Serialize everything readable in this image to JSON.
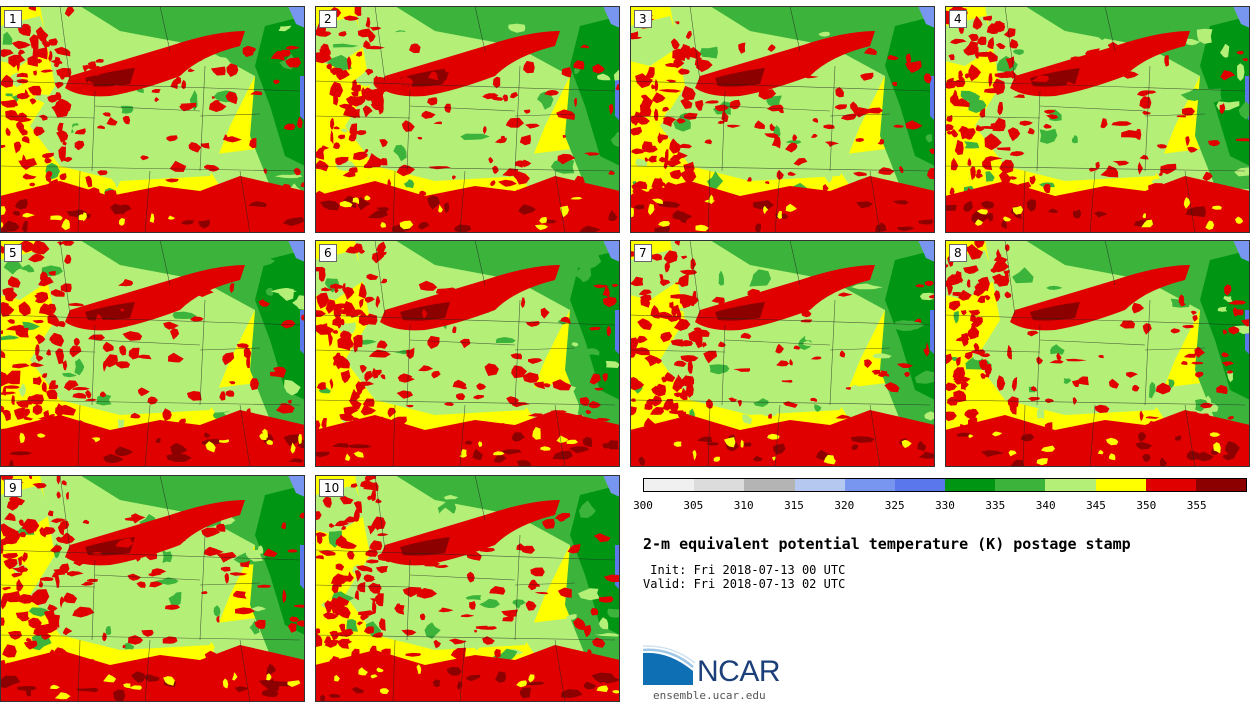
{
  "panels": [
    {
      "label": "1"
    },
    {
      "label": "2"
    },
    {
      "label": "3"
    },
    {
      "label": "4"
    },
    {
      "label": "5"
    },
    {
      "label": "6"
    },
    {
      "label": "7"
    },
    {
      "label": "8"
    },
    {
      "label": "9"
    },
    {
      "label": "10"
    }
  ],
  "colorbar": {
    "colors": [
      "#f0f0f0",
      "#dcdcdc",
      "#b4b4b4",
      "#b4c8f0",
      "#7896f0",
      "#5a78eb",
      "#009614",
      "#3cb43c",
      "#b4f078",
      "#ffff00",
      "#e10000",
      "#8c0000"
    ],
    "ticks": [
      "300",
      "305",
      "310",
      "315",
      "320",
      "325",
      "330",
      "335",
      "340",
      "345",
      "350",
      "355"
    ]
  },
  "title": "2-m equivalent potential temperature (K) postage stamp",
  "init": " Init: Fri 2018-07-13 00 UTC",
  "valid": "Valid: Fri 2018-07-13 02 UTC",
  "logo": {
    "text": "NCAR",
    "site": "ensemble.ucar.edu"
  }
}
